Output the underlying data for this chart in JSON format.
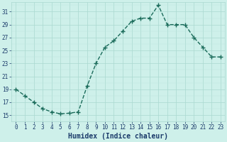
{
  "x": [
    0,
    1,
    2,
    3,
    4,
    5,
    6,
    7,
    8,
    9,
    10,
    11,
    12,
    13,
    14,
    15,
    16,
    17,
    18,
    19,
    20,
    21,
    22,
    23
  ],
  "y": [
    19,
    18,
    17,
    16,
    15.5,
    15.2,
    15.3,
    15.5,
    19.5,
    23,
    25.5,
    26.5,
    28,
    29.5,
    30,
    30,
    32,
    29,
    29,
    29,
    27,
    25.5,
    24,
    24
  ],
  "line_color": "#1a6b5a",
  "marker": "+",
  "marker_size": 4,
  "marker_lw": 1.0,
  "line_width": 1.0,
  "linestyle": "--",
  "bg_color": "#cef0ea",
  "grid_major_color": "#aad8d0",
  "grid_minor_color": "#bce4de",
  "xlabel": "Humidex (Indice chaleur)",
  "xlabel_color": "#1a3a6a",
  "xlabel_fontsize": 7,
  "xlabel_fontfamily": "monospace",
  "xlabel_bold": true,
  "ylim": [
    14.0,
    32.5
  ],
  "xlim": [
    -0.5,
    23.5
  ],
  "yticks": [
    15,
    17,
    19,
    21,
    23,
    25,
    27,
    29,
    31
  ],
  "xticks": [
    0,
    1,
    2,
    3,
    4,
    5,
    6,
    7,
    8,
    9,
    10,
    11,
    12,
    13,
    14,
    15,
    16,
    17,
    18,
    19,
    20,
    21,
    22,
    23
  ],
  "tick_color": "#1a3a6a",
  "tick_fontsize": 5.5,
  "tick_fontfamily": "monospace"
}
